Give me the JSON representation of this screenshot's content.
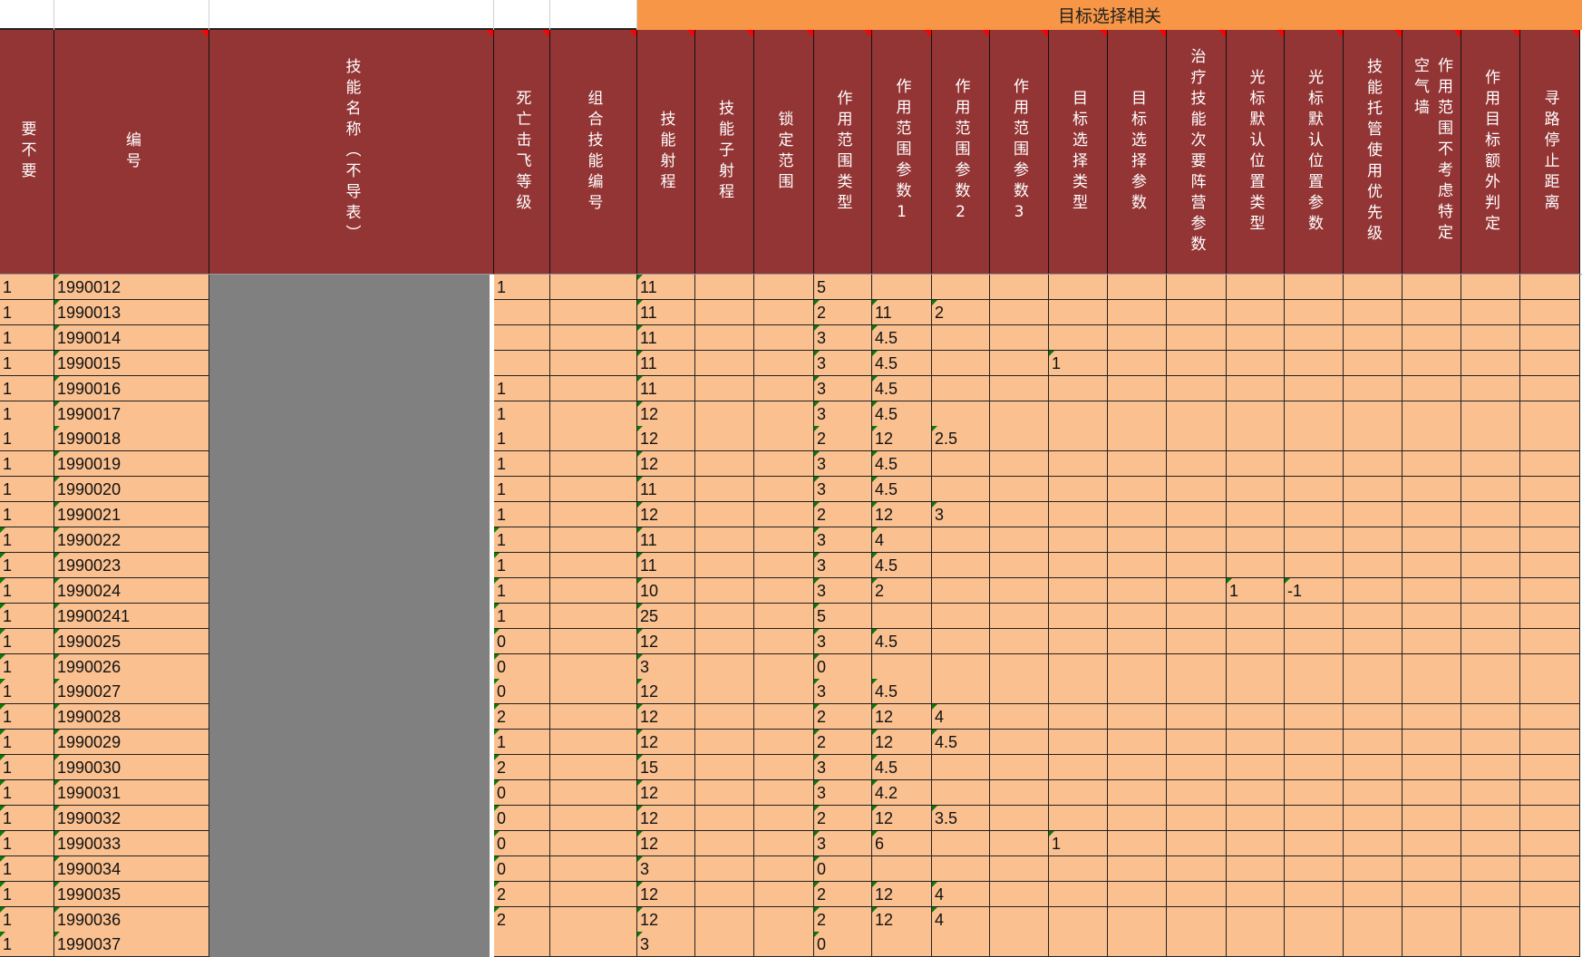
{
  "group_header": "目标选择相关",
  "colors": {
    "header_bg": "#943535",
    "group_bg": "#f79646",
    "cell_bg": "#fac090",
    "masked_col": "#808080"
  },
  "columns": [
    "要不要",
    "编号",
    "技能名称（不导表）",
    "死亡击飞等级",
    "组合技能编号",
    "技能射程",
    "技能子射程",
    "锁定范围",
    "作用范围类型",
    "作用范围参数1",
    "作用范围参数2",
    "作用范围参数3",
    "目标选择类型",
    "目标选择参数",
    "治疗技能次要阵营参数",
    "光标默认位置类型",
    "光标默认位置参数",
    "技能托管使用优先级",
    "作用范围不考虑特定空气墙",
    "作用目标额外判定",
    "寻路停止距离"
  ],
  "rows": [
    {
      "need": "1",
      "id": "1990012",
      "death": "1",
      "range": "11",
      "area_type": "5"
    },
    {
      "need": "1",
      "id": "1990013",
      "range": "11",
      "area_type": "2",
      "p1": "11",
      "p2": "2"
    },
    {
      "need": "1",
      "id": "1990014",
      "range": "11",
      "area_type": "3",
      "p1": "4.5"
    },
    {
      "need": "1",
      "id": "1990015",
      "range": "11",
      "area_type": "3",
      "p1": "4.5",
      "target_type": "1"
    },
    {
      "need": "1",
      "id": "1990016",
      "death": "1",
      "range": "11",
      "area_type": "3",
      "p1": "4.5"
    },
    {
      "need": "1",
      "id": "1990017",
      "death": "1",
      "range": "12",
      "area_type": "3",
      "p1": "4.5"
    },
    {
      "need": "1",
      "id": "1990018",
      "death": "1",
      "range": "12",
      "area_type": "2",
      "p1": "12",
      "p2": "2.5"
    },
    {
      "need": "1",
      "id": "1990019",
      "death": "1",
      "range": "12",
      "area_type": "3",
      "p1": "4.5"
    },
    {
      "need": "1",
      "id": "1990020",
      "death": "1",
      "range": "11",
      "area_type": "3",
      "p1": "4.5"
    },
    {
      "need": "1",
      "id": "1990021",
      "death": "1",
      "range": "12",
      "area_type": "2",
      "p1": "12",
      "p2": "3"
    },
    {
      "need": "1",
      "id": "1990022",
      "death": "1",
      "range": "11",
      "area_type": "3",
      "p1": "4"
    },
    {
      "need": "1",
      "id": "1990023",
      "death": "1",
      "range": "11",
      "area_type": "3",
      "p1": "4.5"
    },
    {
      "need": "1",
      "id": "1990024",
      "death": "1",
      "range": "10",
      "area_type": "3",
      "p1": "2",
      "cursor_type": "1",
      "cursor_param": "-1"
    },
    {
      "need": "1",
      "id": "19900241",
      "death": "1",
      "range": "25",
      "area_type": "5"
    },
    {
      "need": "1",
      "id": "1990025",
      "death": "0",
      "range": "12",
      "area_type": "3",
      "p1": "4.5"
    },
    {
      "need": "1",
      "id": "1990026",
      "death": "0",
      "range": "3",
      "area_type": "0"
    },
    {
      "need": "1",
      "id": "1990027",
      "death": "0",
      "range": "12",
      "area_type": "3",
      "p1": "4.5"
    },
    {
      "need": "1",
      "id": "1990028",
      "death": "2",
      "range": "12",
      "area_type": "2",
      "p1": "12",
      "p2": "4"
    },
    {
      "need": "1",
      "id": "1990029",
      "death": "1",
      "range": "12",
      "area_type": "2",
      "p1": "12",
      "p2": "4.5"
    },
    {
      "need": "1",
      "id": "1990030",
      "death": "2",
      "range": "15",
      "area_type": "3",
      "p1": "4.5"
    },
    {
      "need": "1",
      "id": "1990031",
      "death": "0",
      "range": "12",
      "area_type": "3",
      "p1": "4.2"
    },
    {
      "need": "1",
      "id": "1990032",
      "death": "0",
      "range": "12",
      "area_type": "2",
      "p1": "12",
      "p2": "3.5"
    },
    {
      "need": "1",
      "id": "1990033",
      "death": "0",
      "range": "12",
      "area_type": "3",
      "p1": "6",
      "target_type": "1"
    },
    {
      "need": "1",
      "id": "1990034",
      "death": "0",
      "range": "3",
      "area_type": "0"
    },
    {
      "need": "1",
      "id": "1990035",
      "death": "2",
      "range": "12",
      "area_type": "2",
      "p1": "12",
      "p2": "4"
    },
    {
      "need": "1",
      "id": "1990036",
      "death": "2",
      "range": "12",
      "area_type": "2",
      "p1": "12",
      "p2": "4"
    },
    {
      "need": "1",
      "id": "1990037",
      "range": "3",
      "area_type": "0"
    }
  ]
}
